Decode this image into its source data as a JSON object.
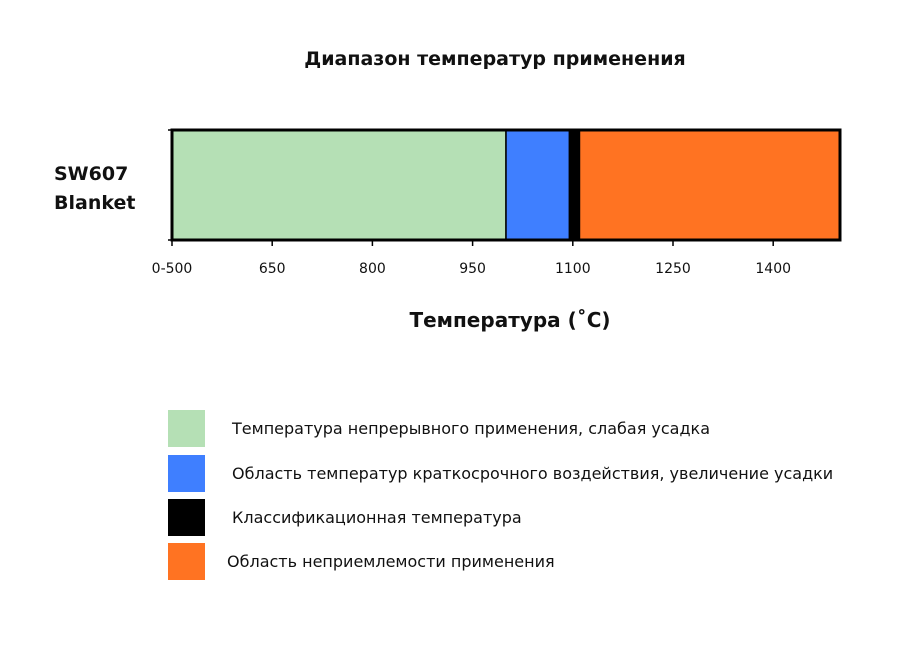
{
  "chart_data": {
    "type": "bar",
    "orientation": "horizontal-stacked-ranges",
    "title": "Диапазон температур применения",
    "category_label_lines": [
      "SW607",
      "Blanket"
    ],
    "xlabel": "Температура (˚C)",
    "xlim": [
      500,
      1500
    ],
    "xticks": [
      500,
      650,
      800,
      950,
      1100,
      1250,
      1400
    ],
    "xtick_labels": [
      "0-500",
      "650",
      "800",
      "950",
      "1100",
      "1250",
      "1400"
    ],
    "grid": false,
    "legend_position": "bottom",
    "segments": [
      {
        "name": "Температура непрерывного применения, слабая усадка",
        "start": 500,
        "end": 1000,
        "color": "#b5e0b5"
      },
      {
        "name": "Область температур краткосрочного воздействия, увеличение усадки",
        "start": 1000,
        "end": 1095,
        "color": "#3f7fff"
      },
      {
        "name": "Классификационная температура",
        "start": 1095,
        "end": 1110,
        "color": "#000000"
      },
      {
        "name": "Область неприемлемости применения",
        "start": 1110,
        "end": 1500,
        "color": "#ff7322"
      }
    ]
  }
}
